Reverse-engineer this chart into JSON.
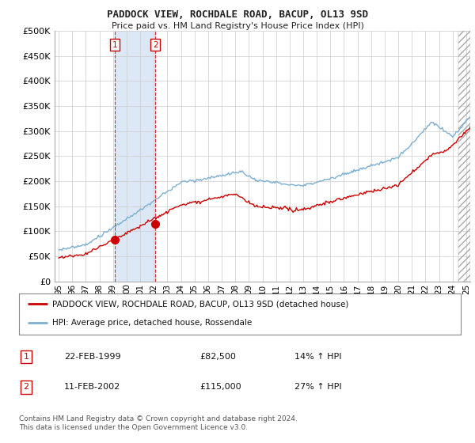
{
  "title": "PADDOCK VIEW, ROCHDALE ROAD, BACUP, OL13 9SD",
  "subtitle": "Price paid vs. HM Land Registry's House Price Index (HPI)",
  "ylim": [
    0,
    500000
  ],
  "yticks": [
    0,
    50000,
    100000,
    150000,
    200000,
    250000,
    300000,
    350000,
    400000,
    450000,
    500000
  ],
  "ytick_labels": [
    "£0",
    "£50K",
    "£100K",
    "£150K",
    "£200K",
    "£250K",
    "£300K",
    "£350K",
    "£400K",
    "£450K",
    "£500K"
  ],
  "xlim_start": 1994.7,
  "xlim_end": 2025.3,
  "xticks": [
    1995,
    1996,
    1997,
    1998,
    1999,
    2000,
    2001,
    2002,
    2003,
    2004,
    2005,
    2006,
    2007,
    2008,
    2009,
    2010,
    2011,
    2012,
    2013,
    2014,
    2015,
    2016,
    2017,
    2018,
    2019,
    2020,
    2021,
    2022,
    2023,
    2024,
    2025
  ],
  "line1_color": "#cc0000",
  "line2_color": "#7bafd4",
  "transaction1_x": 1999.12,
  "transaction1_y": 82500,
  "transaction2_x": 2002.12,
  "transaction2_y": 115000,
  "transaction_line_color": "#cc0000",
  "shade_color": "#dce8f5",
  "hatch_start": 2024.42,
  "legend_line1": "PADDOCK VIEW, ROCHDALE ROAD, BACUP, OL13 9SD (detached house)",
  "legend_line2": "HPI: Average price, detached house, Rossendale",
  "table_entries": [
    {
      "label": "1",
      "date": "22-FEB-1999",
      "price": "£82,500",
      "hpi": "14% ↑ HPI"
    },
    {
      "label": "2",
      "date": "11-FEB-2002",
      "price": "£115,000",
      "hpi": "27% ↑ HPI"
    }
  ],
  "footer": "Contains HM Land Registry data © Crown copyright and database right 2024.\nThis data is licensed under the Open Government Licence v3.0.",
  "background_color": "#ffffff",
  "grid_color": "#cccccc"
}
